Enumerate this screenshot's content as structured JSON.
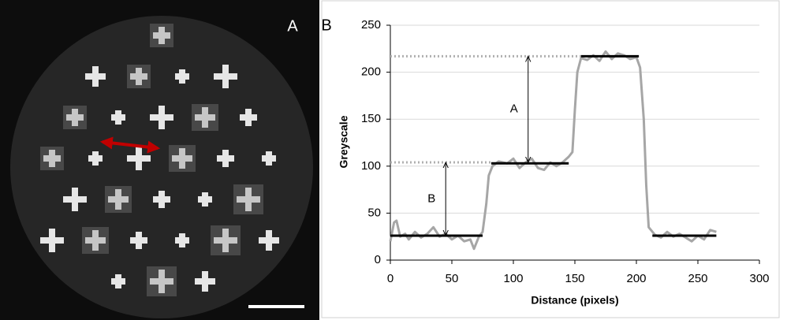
{
  "image_panel": {
    "label": "A"
  },
  "chart_data": {
    "type": "line",
    "panel_label": "B",
    "x_label": "Distance (pixels)",
    "y_label": "Greyscale",
    "xlim": [
      0,
      300
    ],
    "ylim": [
      0,
      250
    ],
    "xticks": [
      0,
      50,
      100,
      150,
      200,
      250,
      300
    ],
    "yticks": [
      0,
      50,
      100,
      150,
      200,
      250
    ],
    "grid": true,
    "series": [
      {
        "color": "#a6a6a6",
        "x": [
          0,
          3,
          5,
          8,
          12,
          15,
          20,
          25,
          30,
          35,
          40,
          45,
          50,
          55,
          60,
          65,
          68,
          72,
          75,
          78,
          80,
          83,
          88,
          95,
          100,
          105,
          110,
          115,
          120,
          125,
          130,
          135,
          140,
          145,
          148,
          150,
          152,
          155,
          160,
          165,
          170,
          175,
          180,
          185,
          190,
          195,
          200,
          203,
          206,
          208,
          210,
          215,
          220,
          225,
          230,
          235,
          240,
          245,
          250,
          255,
          260,
          265
        ],
        "values": [
          20,
          40,
          42,
          25,
          28,
          22,
          30,
          24,
          28,
          35,
          25,
          28,
          22,
          26,
          20,
          22,
          12,
          25,
          30,
          60,
          90,
          100,
          105,
          103,
          108,
          98,
          104,
          108,
          98,
          96,
          104,
          100,
          104,
          110,
          115,
          160,
          200,
          215,
          213,
          218,
          212,
          222,
          214,
          220,
          218,
          214,
          216,
          205,
          150,
          80,
          35,
          27,
          24,
          30,
          25,
          28,
          24,
          20,
          26,
          22,
          32,
          30
        ]
      }
    ],
    "levels": [
      {
        "x": [
          0,
          75
        ],
        "value": 26
      },
      {
        "x": [
          82,
          145
        ],
        "value": 103
      },
      {
        "x": [
          155,
          202
        ],
        "value": 217
      },
      {
        "x": [
          213,
          265
        ],
        "value": 26
      }
    ],
    "reference_lines": [
      {
        "x": [
          0,
          155
        ],
        "value": 217
      },
      {
        "x": [
          0,
          82
        ],
        "value": 104
      }
    ],
    "annotations": [
      {
        "label": "A",
        "x": 112,
        "from": 104,
        "to": 217
      },
      {
        "label": "B",
        "x": 45,
        "from": 26,
        "to": 104
      }
    ]
  }
}
